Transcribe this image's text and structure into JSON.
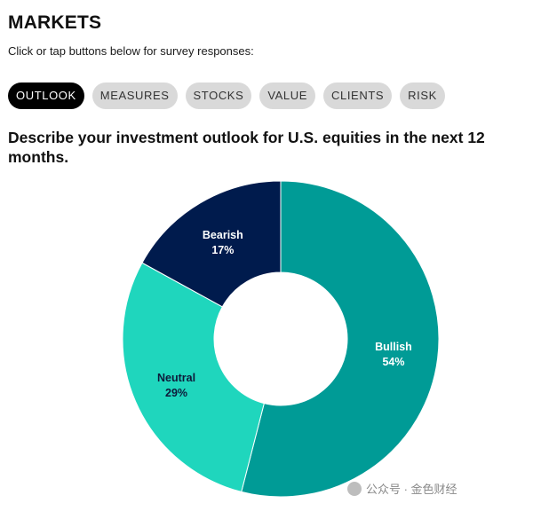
{
  "header": {
    "title": "MARKETS",
    "subtitle": "Click or tap buttons below for survey responses:"
  },
  "tabs": [
    {
      "label": "OUTLOOK",
      "active": true
    },
    {
      "label": "MEASURES",
      "active": false
    },
    {
      "label": "STOCKS",
      "active": false
    },
    {
      "label": "VALUE",
      "active": false
    },
    {
      "label": "CLIENTS",
      "active": false
    },
    {
      "label": "RISK",
      "active": false
    }
  ],
  "question": "Describe your investment outlook for U.S. equities in the next 12 months.",
  "chart_data": {
    "type": "pie",
    "donut": true,
    "title": "Describe your investment outlook for U.S. equities in the next 12 months.",
    "slices": [
      {
        "name": "Bullish",
        "value": 54,
        "value_label": "54%",
        "color": "#009b96",
        "label_color": "#ffffff"
      },
      {
        "name": "Neutral",
        "value": 29,
        "value_label": "29%",
        "color": "#1fd6bd",
        "label_color": "#0d1a3a"
      },
      {
        "name": "Bearish",
        "value": 17,
        "value_label": "17%",
        "color": "#001b4d",
        "label_color": "#ffffff"
      }
    ],
    "start_angle_deg": 0,
    "direction": "clockwise"
  },
  "watermark": {
    "text": "公众号 · 金色财经"
  }
}
